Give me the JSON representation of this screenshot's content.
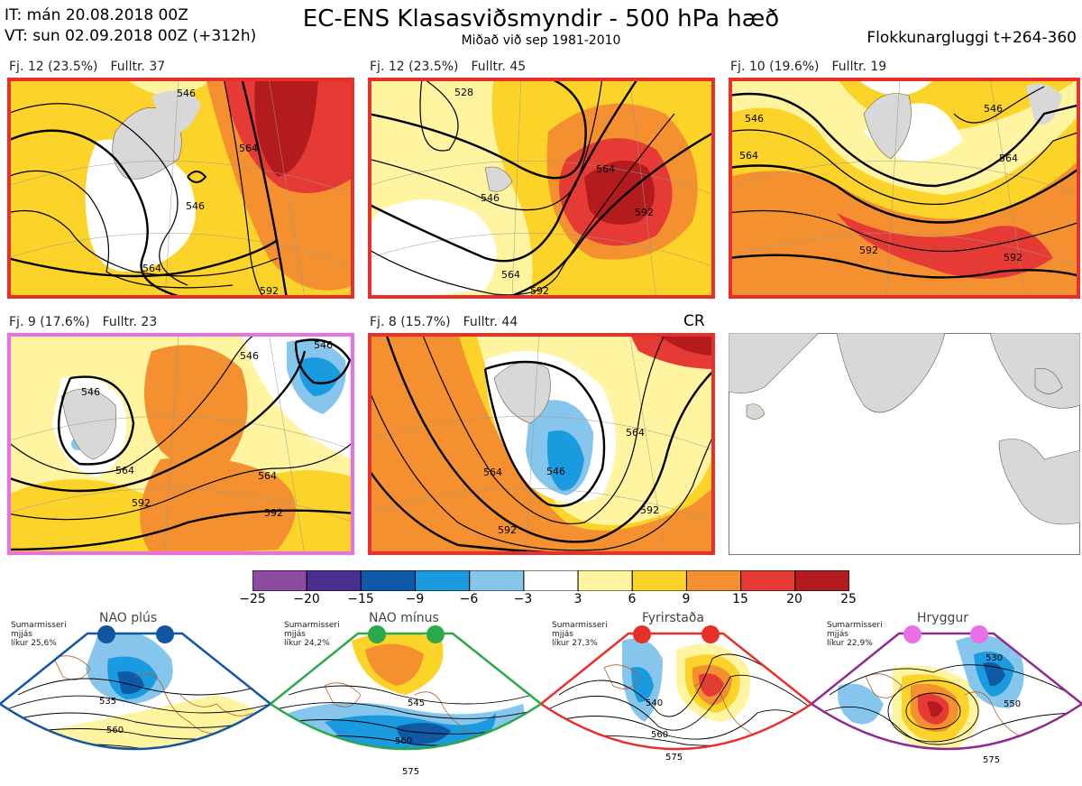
{
  "header": {
    "it_line": "IT: mán 20.08.2018 00Z",
    "vt_line": "VT: sun 02.09.2018 00Z  (+312h)",
    "title": "EC-ENS Klasasviðsmyndir - 500 hPa hæð",
    "subtitle": "Miðað við sep 1981-2010",
    "window": "Flokkunargluggi t+264-360"
  },
  "panels": [
    {
      "fj": "Fj. 12 (23.5%)",
      "fulltr": "Fulltr. 37",
      "frame_color": "#e8302a",
      "contours": [
        "546",
        "564",
        "564",
        "546",
        "592"
      ]
    },
    {
      "fj": "Fj. 12 (23.5%)",
      "fulltr": "Fulltr. 45",
      "frame_color": "#e8302a",
      "contours": [
        "528",
        "546",
        "564",
        "592",
        "564",
        "592"
      ]
    },
    {
      "fj": "Fj. 10 (19.6%)",
      "fulltr": "Fulltr. 19",
      "frame_color": "#e8302a",
      "contours": [
        "546",
        "546",
        "564",
        "564",
        "592",
        "592"
      ]
    },
    {
      "fj": "Fj. 9 (17.6%)",
      "fulltr": "Fulltr. 23",
      "frame_color": "#ea6ee6",
      "contours": [
        "546",
        "546",
        "564",
        "564",
        "592",
        "592",
        "546"
      ]
    },
    {
      "fj": "Fj. 8 (15.7%)",
      "fulltr": "Fulltr. 44",
      "frame_color": "#e8302a",
      "contours": [
        "546",
        "564",
        "592",
        "564",
        "592"
      ]
    }
  ],
  "cr_label": "CR",
  "colorbar": {
    "colors": [
      "#8e4a9e",
      "#4a2f8f",
      "#0f5aa6",
      "#1a9be0",
      "#86c6ec",
      "#ffffff",
      "#fff4a0",
      "#fcd328",
      "#f4902f",
      "#e63b34",
      "#b31b1f"
    ],
    "ticks": [
      "−25",
      "−20",
      "−15",
      "−9",
      "−6",
      "−3",
      "3",
      "6",
      "9",
      "15",
      "20",
      "25"
    ]
  },
  "regimes": [
    {
      "name": "NAO plús",
      "season": "Sumarmisseri",
      "method": "mjjás",
      "prob": "líkur 25,6%",
      "color": "#1156a0",
      "contours": [
        "535",
        "560"
      ]
    },
    {
      "name": "NAO mínus",
      "season": "Sumarmisseri",
      "method": "mjjás",
      "prob": "líkur 24,2%",
      "color": "#2aa84a",
      "contours": [
        "545",
        "560",
        "575"
      ]
    },
    {
      "name": "Fyrirstaða",
      "season": "Sumarmisseri",
      "method": "mjjás",
      "prob": "líkur 27,3%",
      "color": "#e8302a",
      "contours": [
        "540",
        "560",
        "575"
      ]
    },
    {
      "name": "Hryggur",
      "season": "Sumarmisseri",
      "method": "mjjás",
      "prob": "líkur 22,9%",
      "color": "#ea6ee6",
      "contours": [
        "530",
        "550",
        "575"
      ]
    }
  ]
}
